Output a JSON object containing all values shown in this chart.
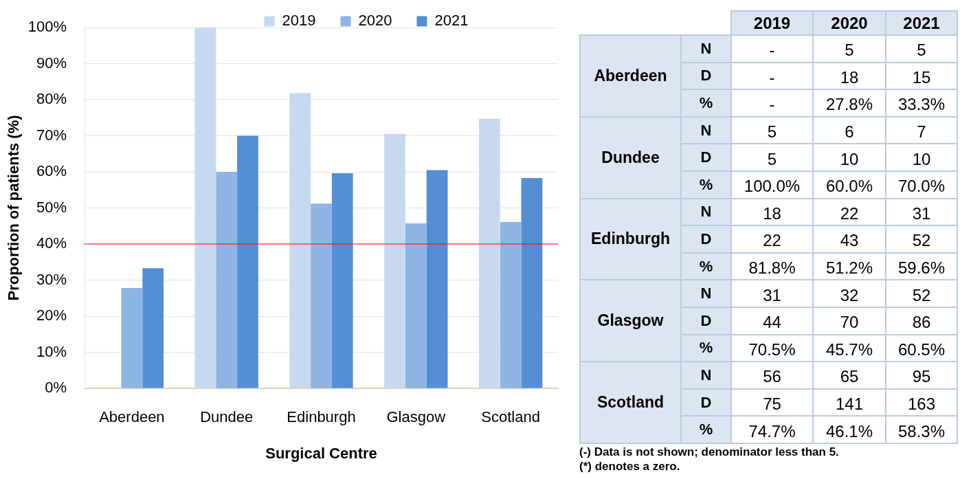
{
  "chart_data": [
    {
      "type": "bar",
      "xlabel": "Surgical Centre",
      "ylabel": "Proportion of patients (%)",
      "categories": [
        "Aberdeen",
        "Dundee",
        "Edinburgh",
        "Glasgow",
        "Scotland"
      ],
      "series": [
        {
          "name": "2019",
          "color": "#c6d9f1",
          "values": [
            null,
            100,
            81.8,
            70.5,
            74.7
          ]
        },
        {
          "name": "2020",
          "color": "#8eb4e3",
          "values": [
            27.8,
            60,
            51.2,
            45.7,
            46.1
          ]
        },
        {
          "name": "2021",
          "color": "#558ed5",
          "values": [
            33.3,
            70,
            59.6,
            60.5,
            58.3
          ]
        }
      ],
      "ylim": [
        0,
        100
      ],
      "yticks": [
        {
          "value": 0,
          "label": "0%"
        },
        {
          "value": 10,
          "label": "10%"
        },
        {
          "value": 20,
          "label": "20%"
        },
        {
          "value": 30,
          "label": "30%"
        },
        {
          "value": 40,
          "label": "40%"
        },
        {
          "value": 50,
          "label": "50%"
        },
        {
          "value": 60,
          "label": "60%"
        },
        {
          "value": 70,
          "label": "70%"
        },
        {
          "value": 80,
          "label": "80%"
        },
        {
          "value": 90,
          "label": "90%"
        },
        {
          "value": 100,
          "label": "100%"
        }
      ],
      "grid": "y",
      "legend": "top",
      "ref_lines": [
        {
          "axis": "y",
          "value": 40,
          "color": "#ff0000"
        }
      ]
    },
    {
      "type": "other",
      "categories": [
        "2019",
        "2020",
        "2021"
      ],
      "y_categories": [
        null,
        "Aberdeen",
        null,
        null,
        "Dundee",
        null,
        null,
        "Edinburgh",
        null,
        null,
        "Glasgow",
        null,
        null,
        "Scotland",
        null
      ],
      "y2_categories": [
        "N",
        "D",
        "%",
        "N",
        "D",
        "%",
        "N",
        "D",
        "%",
        "N",
        "D",
        "%",
        "N",
        "D",
        "%"
      ],
      "cell_labels": [
        [
          "-",
          "5",
          "5"
        ],
        [
          "-",
          "18",
          "15"
        ],
        [
          "-",
          "27.8%",
          "33.3%"
        ],
        [
          "5",
          "6",
          "7"
        ],
        [
          "5",
          "10",
          "10"
        ],
        [
          "100.0%",
          "60.0%",
          "70.0%"
        ],
        [
          "18",
          "22",
          "31"
        ],
        [
          "22",
          "43",
          "52"
        ],
        [
          "81.8%",
          "51.2%",
          "59.6%"
        ],
        [
          "31",
          "32",
          "52"
        ],
        [
          "44",
          "70",
          "86"
        ],
        [
          "70.5%",
          "45.7%",
          "60.5%"
        ],
        [
          "56",
          "65",
          "95"
        ],
        [
          "75",
          "141",
          "163"
        ],
        [
          "74.7%",
          "46.1%",
          "58.3%"
        ]
      ],
      "annotations": [
        "(-) Data is not shown; denominator less than 5.",
        "(*) denotes a zero."
      ]
    }
  ]
}
